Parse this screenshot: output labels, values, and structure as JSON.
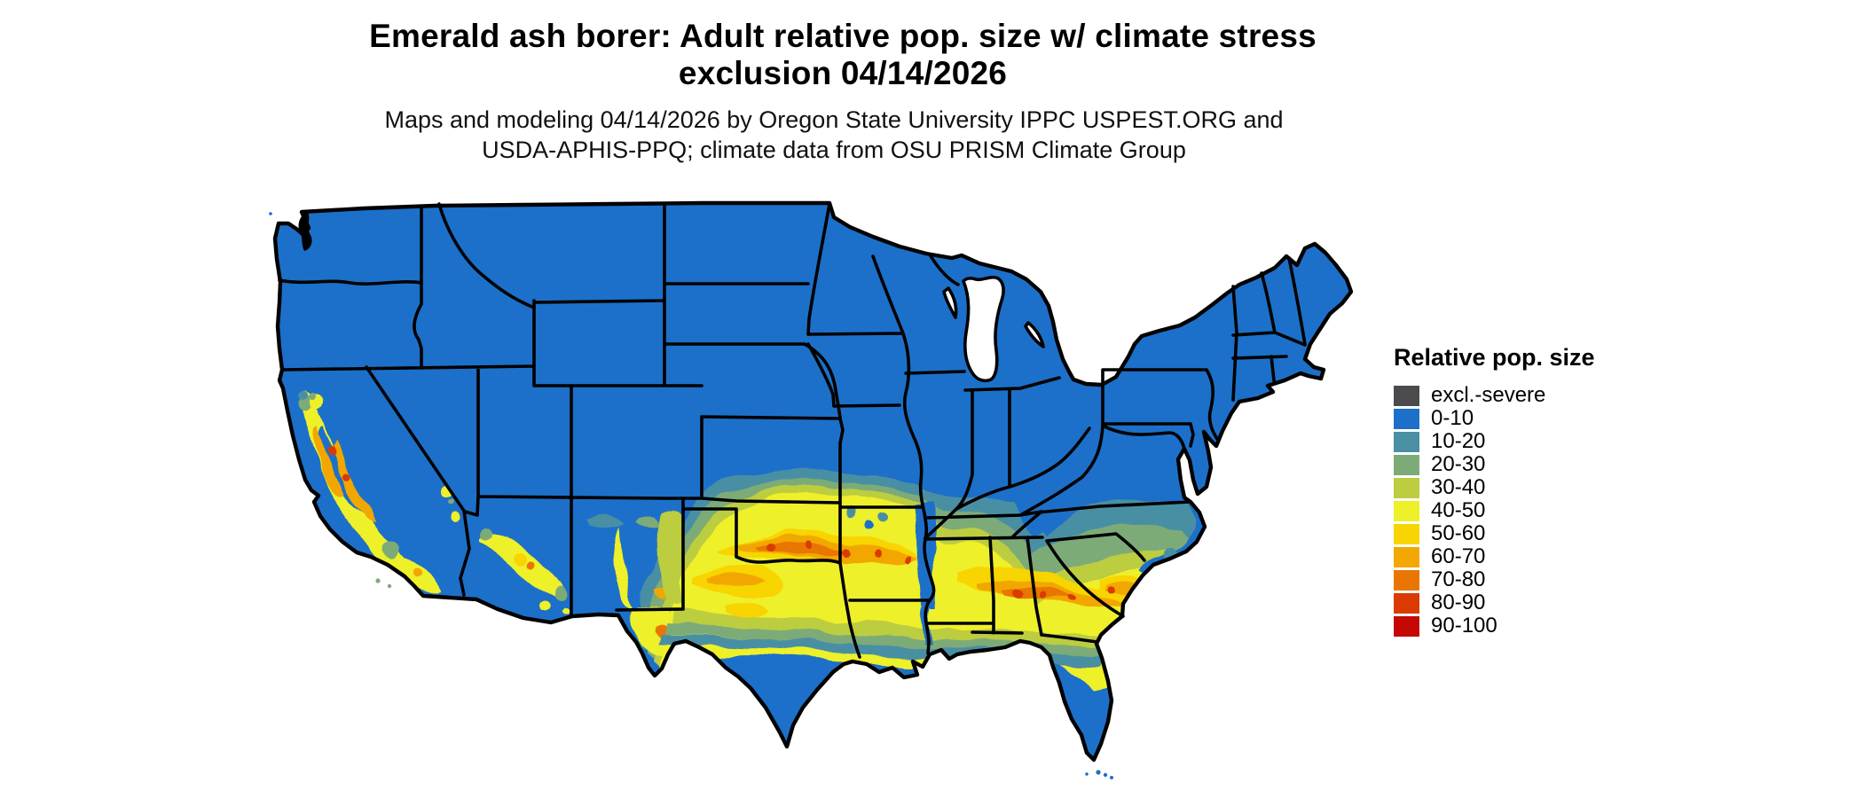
{
  "figure": {
    "type": "choropleth raster map",
    "region": "contiguous United States",
    "background": "#ffffff"
  },
  "title": {
    "line1": "Emerald ash borer: Adult relative pop. size w/ climate stress",
    "line2": "exclusion 04/14/2026"
  },
  "subtitle": {
    "line1": "Maps and modeling 04/14/2026 by Oregon State University IPPC USPEST.ORG and",
    "line2": "USDA-APHIS-PPQ; climate data from OSU PRISM Climate Group"
  },
  "legend": {
    "title": "Relative pop. size",
    "items": [
      {
        "label": "excl.-severe",
        "color": "#4b4b4d"
      },
      {
        "label": "0-10",
        "color": "#1c70c9"
      },
      {
        "label": "10-20",
        "color": "#4a8fa4"
      },
      {
        "label": "20-30",
        "color": "#7dab77"
      },
      {
        "label": "30-40",
        "color": "#bccd3f"
      },
      {
        "label": "40-50",
        "color": "#eef02a"
      },
      {
        "label": "50-60",
        "color": "#f8d402"
      },
      {
        "label": "60-70",
        "color": "#f2a702"
      },
      {
        "label": "70-80",
        "color": "#e97602"
      },
      {
        "label": "80-90",
        "color": "#da3b02"
      },
      {
        "label": "90-100",
        "color": "#c50803"
      }
    ]
  },
  "map": {
    "base_color": "#1c70c9",
    "state_border_color": "#000000",
    "water_color": "#ffffff",
    "high_value_regions": "central/southern California, southern Arizona and New Mexico, north-central Texas, Oklahoma, Arkansas, central Alabama-Georgia-South Carolina",
    "low_value_regions": "northern states, Appalachians, Mississippi valley, south Texas, Gulf coast, Florida peninsula"
  }
}
